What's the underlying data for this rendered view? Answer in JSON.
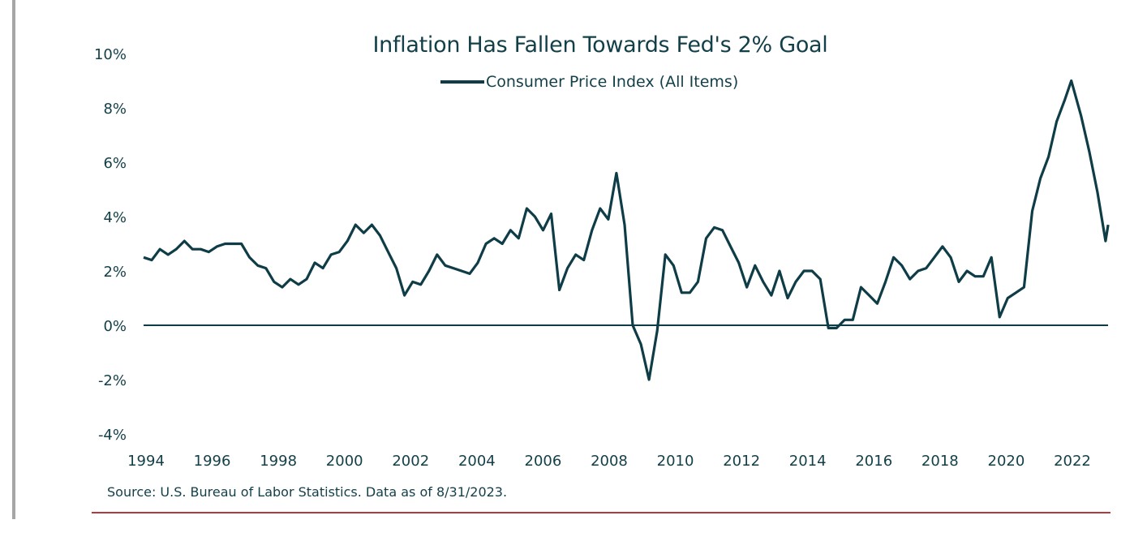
{
  "chart_data": {
    "type": "line",
    "title": "Inflation Has Fallen Towards Fed's 2% Goal",
    "legend": [
      "Consumer Price Index (All Items)"
    ],
    "legend_position": "top-center",
    "xlabel": "",
    "ylabel": "",
    "ylim": [
      -4,
      10
    ],
    "yticks": [
      "10%",
      "8%",
      "6%",
      "4%",
      "2%",
      "0%",
      "-2%",
      "-4%"
    ],
    "ytick_values": [
      10,
      8,
      6,
      4,
      2,
      0,
      -2,
      -4
    ],
    "xticks": [
      "1994",
      "1996",
      "1998",
      "2000",
      "2002",
      "2004",
      "2006",
      "2008",
      "2010",
      "2012",
      "2014",
      "2016",
      "2018",
      "2020",
      "2022"
    ],
    "series": [
      {
        "name": "Consumer Price Index (All Items)",
        "color": "#0e3d47",
        "x": [
          1994,
          1994.25,
          1994.5,
          1994.75,
          1995,
          1995.25,
          1995.5,
          1995.75,
          1996,
          1996.25,
          1996.5,
          1996.75,
          1997,
          1997.25,
          1997.5,
          1997.75,
          1998,
          1998.25,
          1998.5,
          1998.75,
          1999,
          1999.25,
          1999.5,
          1999.75,
          2000,
          2000.25,
          2000.5,
          2000.75,
          2001,
          2001.25,
          2001.5,
          2001.75,
          2002,
          2002.25,
          2002.5,
          2002.75,
          2003,
          2003.25,
          2003.5,
          2003.75,
          2004,
          2004.25,
          2004.5,
          2004.75,
          2005,
          2005.25,
          2005.5,
          2005.75,
          2006,
          2006.25,
          2006.5,
          2006.75,
          2007,
          2007.25,
          2007.5,
          2007.75,
          2008,
          2008.25,
          2008.5,
          2008.75,
          2009,
          2009.25,
          2009.5,
          2009.75,
          2010,
          2010.25,
          2010.5,
          2010.75,
          2011,
          2011.25,
          2011.5,
          2011.75,
          2012,
          2012.25,
          2012.5,
          2012.75,
          2013,
          2013.25,
          2013.5,
          2013.75,
          2014,
          2014.25,
          2014.5,
          2014.75,
          2015,
          2015.25,
          2015.5,
          2015.75,
          2016,
          2016.25,
          2016.5,
          2016.75,
          2017,
          2017.25,
          2017.5,
          2017.75,
          2018,
          2018.25,
          2018.5,
          2018.75,
          2019,
          2019.25,
          2019.5,
          2019.75,
          2020,
          2020.25,
          2020.5,
          2020.75,
          2021,
          2021.25,
          2021.5,
          2021.75,
          2022,
          2022.25,
          2022.45,
          2022.75,
          2023,
          2023.25,
          2023.5,
          2023.58
        ],
        "values": [
          2.5,
          2.4,
          2.8,
          2.6,
          2.8,
          3.1,
          2.8,
          2.8,
          2.7,
          2.9,
          3.0,
          3.0,
          3.0,
          2.5,
          2.2,
          2.1,
          1.6,
          1.4,
          1.7,
          1.5,
          1.7,
          2.3,
          2.1,
          2.6,
          2.7,
          3.1,
          3.7,
          3.4,
          3.7,
          3.3,
          2.7,
          2.1,
          1.1,
          1.6,
          1.5,
          2.0,
          2.6,
          2.2,
          2.1,
          2.0,
          1.9,
          2.3,
          3.0,
          3.2,
          3.0,
          3.5,
          3.2,
          4.3,
          4.0,
          3.5,
          4.1,
          1.3,
          2.1,
          2.6,
          2.4,
          3.5,
          4.3,
          3.9,
          5.6,
          3.7,
          0.0,
          -0.7,
          -2.0,
          -0.2,
          2.6,
          2.2,
          1.2,
          1.2,
          1.6,
          3.2,
          3.6,
          3.5,
          2.9,
          2.3,
          1.4,
          2.2,
          1.6,
          1.1,
          2.0,
          1.0,
          1.6,
          2.0,
          2.0,
          1.7,
          -0.1,
          -0.1,
          0.2,
          0.2,
          1.4,
          1.1,
          0.8,
          1.6,
          2.5,
          2.2,
          1.7,
          2.0,
          2.1,
          2.5,
          2.9,
          2.5,
          1.6,
          2.0,
          1.8,
          1.8,
          2.5,
          0.3,
          1.0,
          1.2,
          1.4,
          4.2,
          5.4,
          6.2,
          7.5,
          8.3,
          9.0,
          7.7,
          6.4,
          4.9,
          3.1,
          3.7
        ]
      }
    ]
  },
  "source_note": "Source: U.S. Bureau of Labor Statistics. Data as of 8/31/2023."
}
